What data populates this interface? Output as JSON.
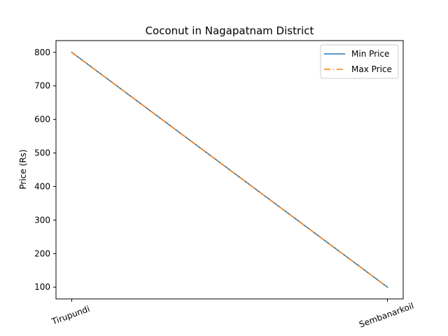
{
  "chart_data": {
    "type": "line",
    "title": "Coconut in Nagapatnam District",
    "xlabel": "",
    "ylabel": "Price (Rs)",
    "categories": [
      "Tirupundi",
      "Sembanarkoil"
    ],
    "yticks": [
      100,
      200,
      300,
      400,
      500,
      600,
      700,
      800
    ],
    "ylim": [
      65,
      835
    ],
    "series": [
      {
        "name": "Min Price",
        "values": [
          800,
          100
        ],
        "color": "#1f77b4",
        "style": "solid"
      },
      {
        "name": "Max Price",
        "values": [
          800,
          100
        ],
        "color": "#ff7f0e",
        "style": "dashdot"
      }
    ],
    "legend_position": "top-right",
    "grid": false
  }
}
